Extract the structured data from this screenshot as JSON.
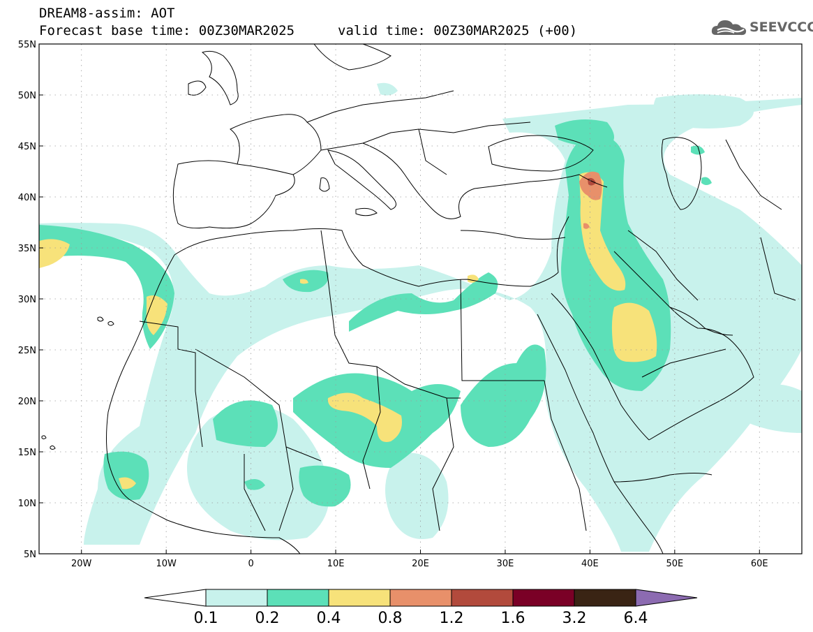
{
  "header": {
    "title_line1": "DREAM8-assim: AOT",
    "title_line2": "Forecast base time: 00Z30MAR2025",
    "valid_time": "valid time: 00Z30MAR2025 (+00)",
    "logo_text": "SEEVCCC"
  },
  "map": {
    "projection": "lat-lon",
    "lon_range": [
      -25,
      65
    ],
    "lat_range": [
      5,
      55
    ],
    "lon_ticks": [
      {
        "value": -20,
        "label": "20W"
      },
      {
        "value": -10,
        "label": "10W"
      },
      {
        "value": 0,
        "label": "0"
      },
      {
        "value": 10,
        "label": "10E"
      },
      {
        "value": 20,
        "label": "20E"
      },
      {
        "value": 30,
        "label": "30E"
      },
      {
        "value": 40,
        "label": "40E"
      },
      {
        "value": 50,
        "label": "50E"
      },
      {
        "value": 60,
        "label": "60E"
      }
    ],
    "lat_ticks": [
      {
        "value": 5,
        "label": "5N"
      },
      {
        "value": 10,
        "label": "10N"
      },
      {
        "value": 15,
        "label": "15N"
      },
      {
        "value": 20,
        "label": "20N"
      },
      {
        "value": 25,
        "label": "25N"
      },
      {
        "value": 30,
        "label": "30N"
      },
      {
        "value": 35,
        "label": "35N"
      },
      {
        "value": 40,
        "label": "40N"
      },
      {
        "value": 45,
        "label": "45N"
      },
      {
        "value": 50,
        "label": "50N"
      },
      {
        "value": 55,
        "label": "55N"
      }
    ],
    "grid": true
  },
  "colorbar": {
    "labels": [
      "0.1",
      "0.2",
      "0.4",
      "0.8",
      "1.2",
      "1.6",
      "3.2",
      "6.4"
    ],
    "colors": [
      "#c8f2ec",
      "#5ce0b8",
      "#f7e27a",
      "#e8906a",
      "#b24a3c",
      "#7a0026",
      "#3a2414"
    ],
    "over_color": "#8c6bb1",
    "under_color": "#ffffff"
  }
}
